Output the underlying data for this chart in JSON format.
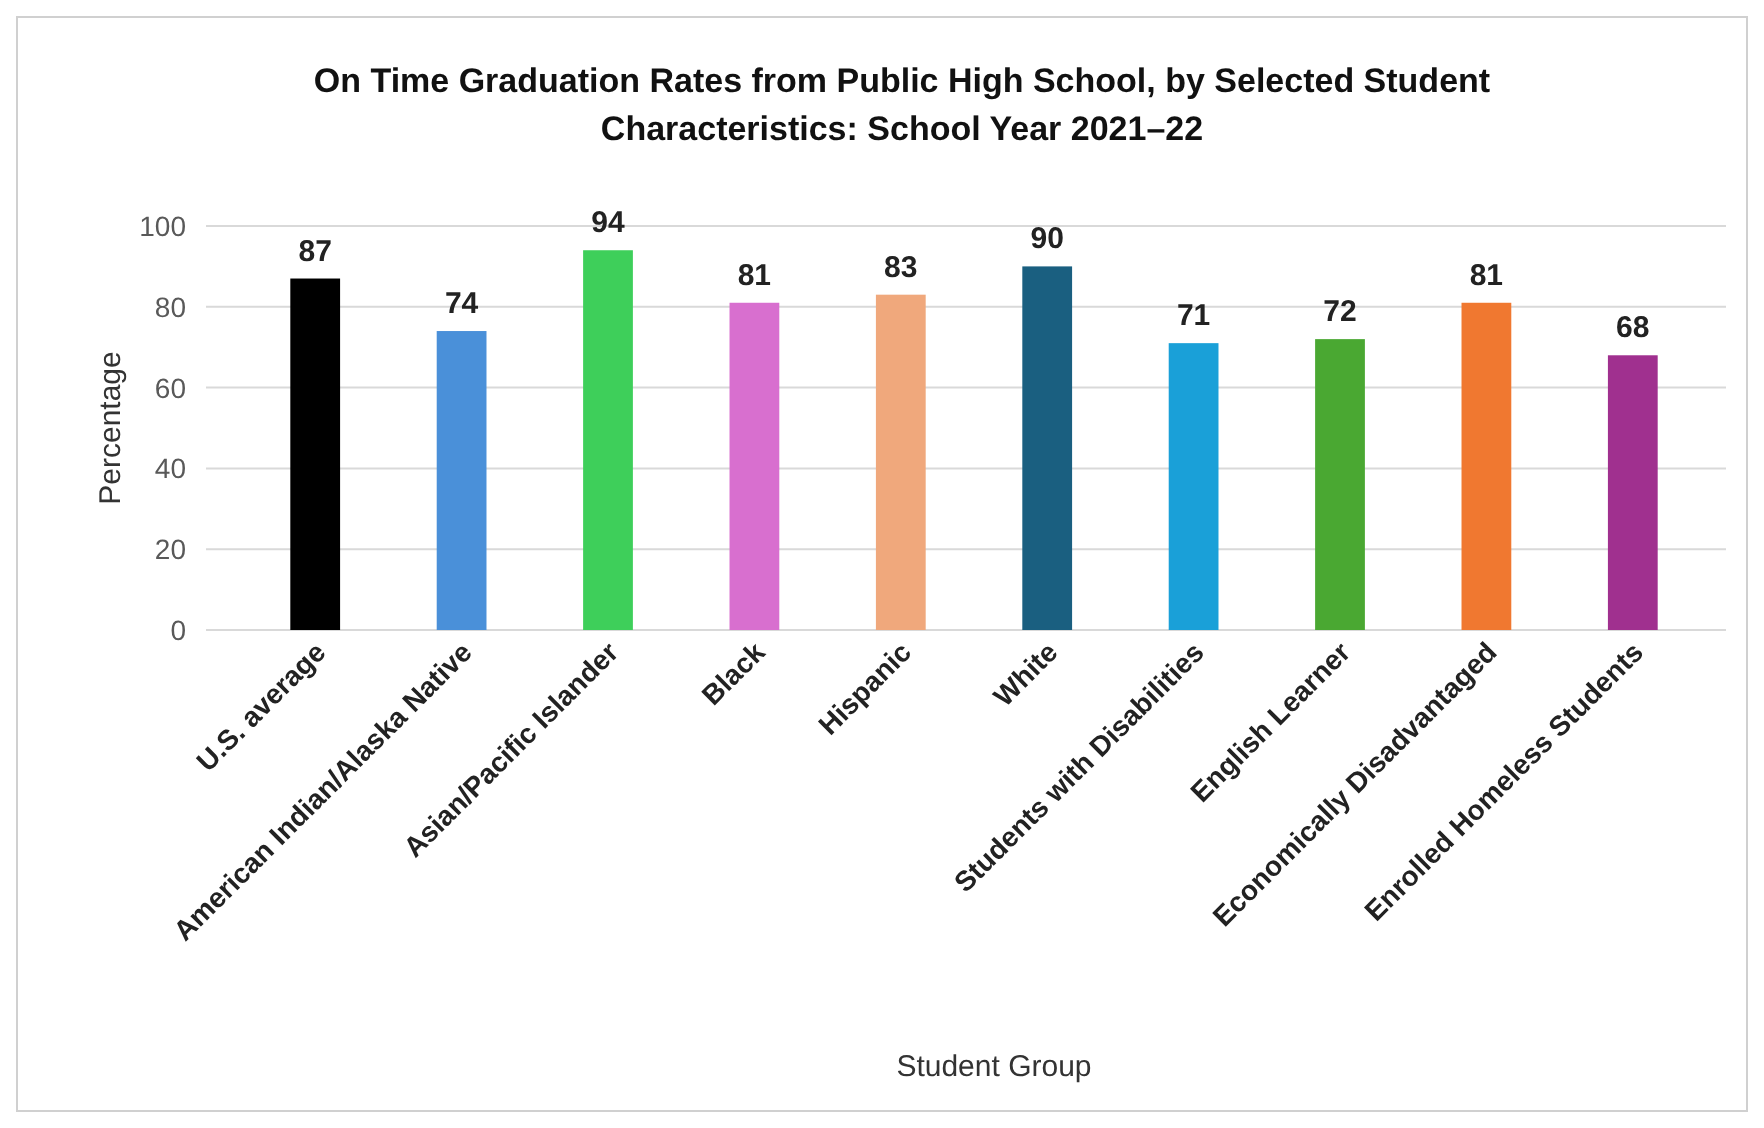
{
  "chart_data": {
    "type": "bar",
    "title": "On Time Graduation Rates from Public High School, by Selected Student Characteristics: School Year 2021–22",
    "xlabel": "Student Group",
    "ylabel": "Percentage",
    "categories": [
      "U.S. average",
      "American Indian/Alaska Native",
      "Asian/Pacific Islander",
      "Black",
      "Hispanic",
      "White",
      "Students with Disabilities",
      "English Learner",
      "Economically Disadvantaged",
      "Enrolled Homeless Students"
    ],
    "values": [
      87,
      74,
      94,
      81,
      83,
      90,
      71,
      72,
      81,
      68
    ],
    "colors": [
      "#000000",
      "#4a90d9",
      "#3ecf5a",
      "#d86fcf",
      "#f0a87c",
      "#1a5f80",
      "#1aa0d8",
      "#4aa832",
      "#f07830",
      "#a0308f"
    ],
    "ylim": [
      0,
      100
    ],
    "yticks": [
      0,
      20,
      40,
      60,
      80,
      100
    ],
    "grid": "y",
    "data_labels": true
  }
}
